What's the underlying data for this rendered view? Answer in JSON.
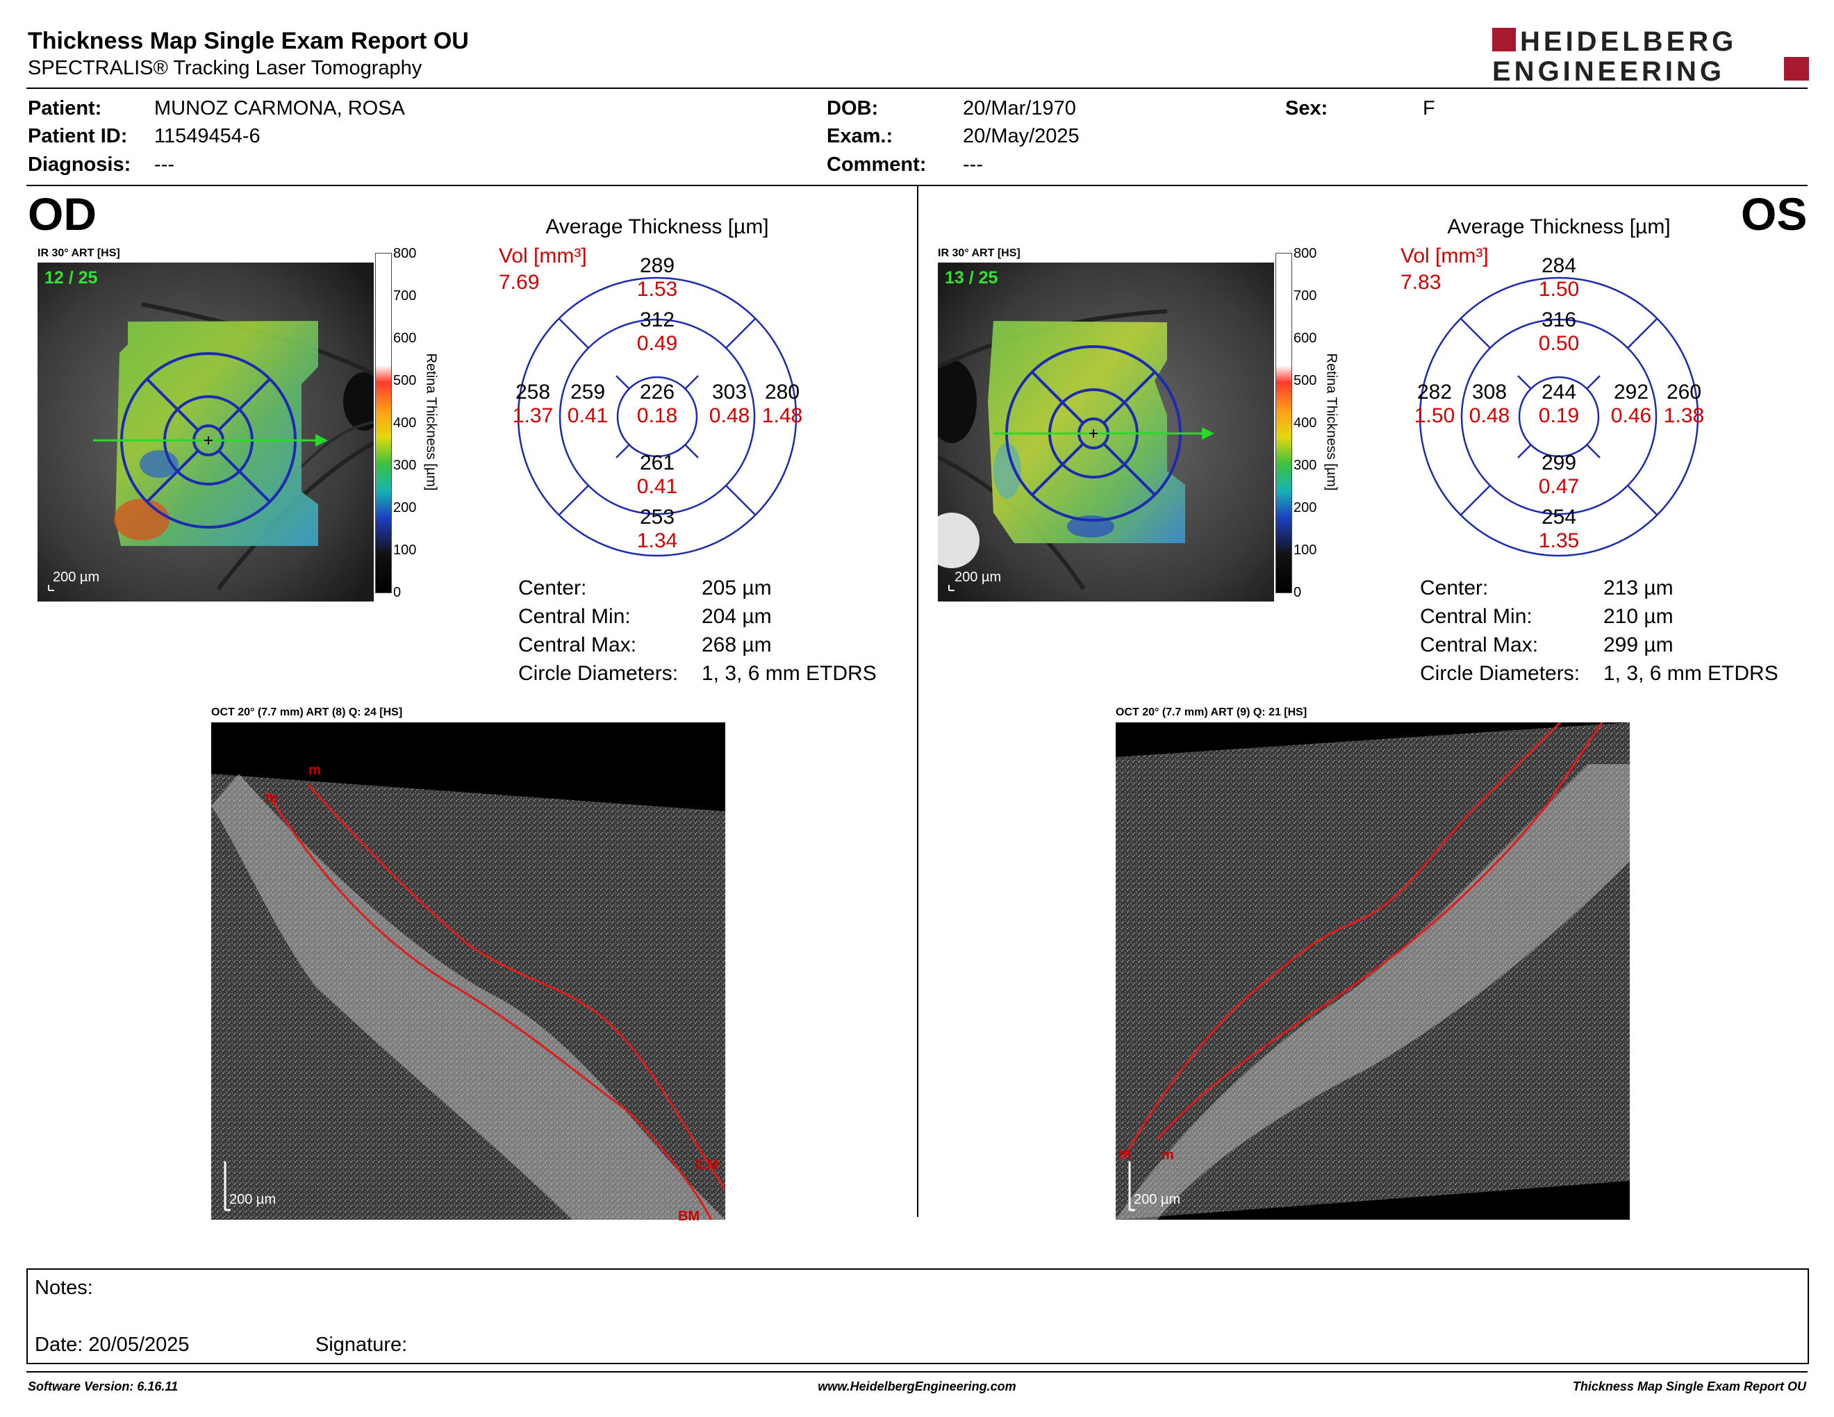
{
  "header": {
    "title": "Thickness Map Single Exam Report OU",
    "subtitle": "SPECTRALIS® Tracking Laser Tomography",
    "logo_line1": "HEIDELBERG",
    "logo_line2": "ENGINEERING",
    "brand_color": "#a6192e"
  },
  "patient": {
    "patient_label": "Patient:",
    "patient_value": "MUNOZ CARMONA, ROSA",
    "id_label": "Patient ID:",
    "id_value": "11549454-6",
    "diag_label": "Diagnosis:",
    "diag_value": "---",
    "dob_label": "DOB:",
    "dob_value": "20/Mar/1970",
    "exam_label": "Exam.:",
    "exam_value": "20/May/2025",
    "comment_label": "Comment:",
    "comment_value": "---",
    "sex_label": "Sex:",
    "sex_value": "F"
  },
  "colorbar": {
    "ticks": [
      "800",
      "700",
      "600",
      "500",
      "400",
      "300",
      "200",
      "100",
      "0"
    ],
    "label": "Retina Thickness [µm]"
  },
  "eyes": {
    "od": {
      "label": "OD",
      "ir_label": "IR 30° ART [HS]",
      "frame": "12 / 25",
      "scale": "200 µm",
      "avg_title": "Average Thickness [µm]",
      "vol_label": "Vol [mm³]",
      "vol_value": "7.69",
      "etdrs": {
        "outer_sup": {
          "t": "289",
          "v": "1.53"
        },
        "inner_sup": {
          "t": "312",
          "v": "0.49"
        },
        "outer_left": {
          "t": "258",
          "v": "1.37"
        },
        "inner_left": {
          "t": "259",
          "v": "0.41"
        },
        "center": {
          "t": "226",
          "v": "0.18"
        },
        "inner_right": {
          "t": "303",
          "v": "0.48"
        },
        "outer_right": {
          "t": "280",
          "v": "1.48"
        },
        "inner_inf": {
          "t": "261",
          "v": "0.41"
        },
        "outer_inf": {
          "t": "253",
          "v": "1.34"
        }
      },
      "stats": [
        {
          "label": "Center:",
          "value": "205 µm"
        },
        {
          "label": "Central Min:",
          "value": "204 µm"
        },
        {
          "label": "Central Max:",
          "value": "268 µm"
        },
        {
          "label": "Circle Diameters:",
          "value": "1, 3, 6 mm ETDRS"
        }
      ],
      "oct_label": "OCT 20° (7.7 mm) ART (8) Q: 24 [HS]",
      "oct_scale": "200 µm",
      "oct_marks": [
        "m",
        "m",
        "ILM",
        "BM"
      ]
    },
    "os": {
      "label": "OS",
      "ir_label": "IR 30° ART [HS]",
      "frame": "13 / 25",
      "scale": "200 µm",
      "avg_title": "Average Thickness [µm]",
      "vol_label": "Vol [mm³]",
      "vol_value": "7.83",
      "etdrs": {
        "outer_sup": {
          "t": "284",
          "v": "1.50"
        },
        "inner_sup": {
          "t": "316",
          "v": "0.50"
        },
        "outer_left": {
          "t": "282",
          "v": "1.50"
        },
        "inner_left": {
          "t": "308",
          "v": "0.48"
        },
        "center": {
          "t": "244",
          "v": "0.19"
        },
        "inner_right": {
          "t": "292",
          "v": "0.46"
        },
        "outer_right": {
          "t": "260",
          "v": "1.38"
        },
        "inner_inf": {
          "t": "299",
          "v": "0.47"
        },
        "outer_inf": {
          "t": "254",
          "v": "1.35"
        }
      },
      "stats": [
        {
          "label": "Center:",
          "value": "213 µm"
        },
        {
          "label": "Central Min:",
          "value": "210 µm"
        },
        {
          "label": "Central Max:",
          "value": "299 µm"
        },
        {
          "label": "Circle Diameters:",
          "value": "1, 3, 6 mm ETDRS"
        }
      ],
      "oct_label": "OCT 20° (7.7 mm) ART (9) Q: 21 [HS]",
      "oct_scale": "200 µm",
      "oct_marks": [
        "m",
        "m"
      ]
    }
  },
  "notes": {
    "notes_label": "Notes:",
    "date_label": "Date: 20/05/2025",
    "signature_label": "Signature:"
  },
  "footer": {
    "left": "Software Version: 6.16.11",
    "center": "www.HeidelbergEngineering.com",
    "right": "Thickness Map Single Exam Report OU"
  }
}
